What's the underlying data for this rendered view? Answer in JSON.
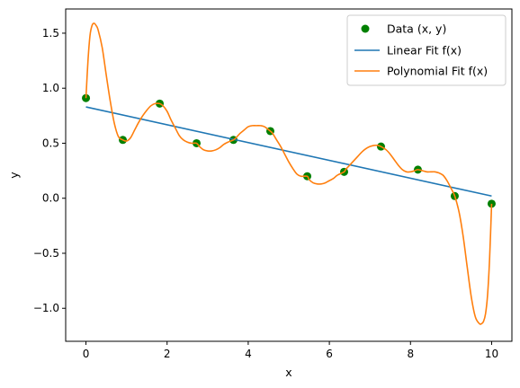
{
  "chart_data": {
    "type": "scatter",
    "xlabel": "x",
    "ylabel": "y",
    "xlim": [
      -0.5,
      10.5
    ],
    "ylim": [
      -1.3,
      1.72
    ],
    "xticks": [
      0,
      2,
      4,
      6,
      8,
      10
    ],
    "yticks": [
      -1.0,
      -0.5,
      0.0,
      0.5,
      1.0,
      1.5
    ],
    "xtick_labels": [
      "0",
      "2",
      "4",
      "6",
      "8",
      "10"
    ],
    "ytick_labels": [
      "−1.0",
      "−0.5",
      "0.0",
      "0.5",
      "1.0",
      "1.5"
    ],
    "grid": false,
    "legend_position": "top-right",
    "series": [
      {
        "name": "Data (x, y)",
        "kind": "scatter",
        "color": "#008000",
        "x": [
          0.0,
          0.909,
          1.818,
          2.727,
          3.636,
          4.545,
          5.455,
          6.364,
          7.273,
          8.182,
          9.091,
          10.0
        ],
        "y": [
          0.91,
          0.53,
          0.86,
          0.5,
          0.53,
          0.61,
          0.2,
          0.24,
          0.47,
          0.26,
          0.02,
          -0.05
        ]
      },
      {
        "name": "Linear Fit f(x)",
        "kind": "line",
        "color": "#1f77b4",
        "x": [
          0.0,
          10.0
        ],
        "y": [
          0.83,
          0.02
        ]
      },
      {
        "name": "Polynomial Fit f(x)",
        "kind": "line",
        "color": "#ff7f0e",
        "x": [
          0.0,
          0.05,
          0.1,
          0.15,
          0.2,
          0.25,
          0.3,
          0.4,
          0.5,
          0.6,
          0.7,
          0.8,
          0.909,
          1.0,
          1.1,
          1.2,
          1.3,
          1.4,
          1.5,
          1.6,
          1.7,
          1.818,
          1.9,
          2.0,
          2.1,
          2.2,
          2.3,
          2.4,
          2.5,
          2.6,
          2.727,
          2.8,
          2.9,
          3.0,
          3.1,
          3.2,
          3.3,
          3.4,
          3.5,
          3.636,
          3.7,
          3.8,
          3.9,
          4.0,
          4.1,
          4.2,
          4.3,
          4.4,
          4.545,
          4.6,
          4.7,
          4.8,
          4.9,
          5.0,
          5.1,
          5.2,
          5.3,
          5.455,
          5.5,
          5.6,
          5.7,
          5.8,
          5.9,
          6.0,
          6.1,
          6.2,
          6.364,
          6.4,
          6.5,
          6.6,
          6.7,
          6.8,
          6.9,
          7.0,
          7.1,
          7.2,
          7.273,
          7.4,
          7.5,
          7.6,
          7.7,
          7.8,
          7.9,
          8.0,
          8.1,
          8.182,
          8.3,
          8.4,
          8.5,
          8.6,
          8.7,
          8.8,
          8.9,
          9.0,
          9.091,
          9.2,
          9.3,
          9.4,
          9.5,
          9.6,
          9.7,
          9.75,
          9.8,
          9.85,
          9.9,
          9.95,
          10.0
        ],
        "y": [
          0.91,
          1.25,
          1.48,
          1.57,
          1.59,
          1.57,
          1.53,
          1.37,
          1.12,
          0.88,
          0.68,
          0.56,
          0.53,
          0.52,
          0.55,
          0.62,
          0.69,
          0.75,
          0.8,
          0.84,
          0.86,
          0.86,
          0.84,
          0.79,
          0.71,
          0.64,
          0.57,
          0.53,
          0.51,
          0.5,
          0.5,
          0.47,
          0.44,
          0.43,
          0.43,
          0.44,
          0.46,
          0.49,
          0.51,
          0.53,
          0.55,
          0.59,
          0.62,
          0.65,
          0.66,
          0.66,
          0.66,
          0.65,
          0.61,
          0.59,
          0.53,
          0.47,
          0.4,
          0.33,
          0.27,
          0.22,
          0.2,
          0.2,
          0.17,
          0.14,
          0.13,
          0.13,
          0.14,
          0.16,
          0.18,
          0.21,
          0.24,
          0.26,
          0.3,
          0.34,
          0.38,
          0.42,
          0.45,
          0.47,
          0.48,
          0.48,
          0.47,
          0.44,
          0.4,
          0.35,
          0.3,
          0.26,
          0.24,
          0.24,
          0.25,
          0.26,
          0.25,
          0.24,
          0.24,
          0.24,
          0.23,
          0.21,
          0.16,
          0.09,
          0.02,
          -0.13,
          -0.35,
          -0.63,
          -0.9,
          -1.08,
          -1.14,
          -1.14,
          -1.12,
          -1.05,
          -0.88,
          -0.55,
          -0.05
        ]
      }
    ]
  }
}
